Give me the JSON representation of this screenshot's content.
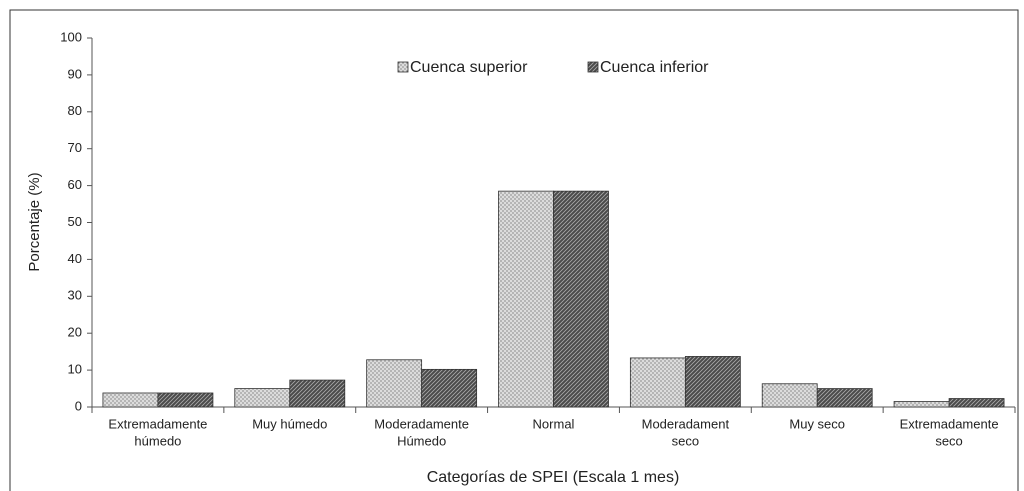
{
  "chart_data": {
    "type": "bar",
    "categories": [
      [
        "Extremadamente",
        "húmedo"
      ],
      [
        "Muy húmedo"
      ],
      [
        "Moderadamente",
        "Húmedo"
      ],
      [
        "Normal"
      ],
      [
        "Moderadament",
        "seco"
      ],
      [
        "Muy seco"
      ],
      [
        "Extremadamente",
        "seco"
      ]
    ],
    "series": [
      {
        "name": "Cuenca superior",
        "color": "#dcdcdc",
        "values": [
          3.8,
          5.0,
          12.8,
          58.5,
          13.3,
          6.3,
          1.5
        ]
      },
      {
        "name": "Cuenca inferior",
        "color": "#4a4a4a",
        "values": [
          3.8,
          7.3,
          10.2,
          58.5,
          13.7,
          5.0,
          2.3
        ]
      }
    ],
    "y_label": "Porcentaje (%)",
    "x_label": "Categorías de SPEI (Escala 1 mes)",
    "ylim": [
      0,
      100
    ],
    "yticks": [
      0,
      10,
      20,
      30,
      40,
      50,
      60,
      70,
      80,
      90,
      100
    ]
  }
}
